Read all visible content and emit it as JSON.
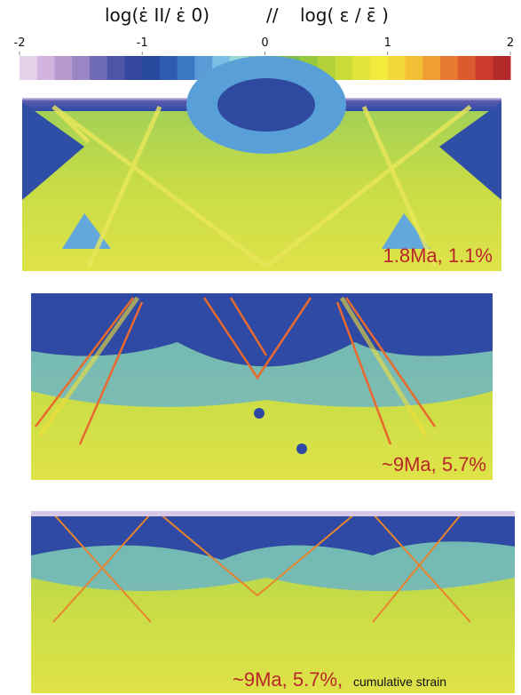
{
  "colorbar": {
    "title_left": "log(ε̇ II/ ε̇ 0)",
    "separator": "//",
    "title_right": "log( ε / ε̄ )",
    "range": [
      -2,
      2
    ],
    "ticks": [
      -2,
      -1,
      0,
      1,
      2
    ],
    "colors": [
      "#e6d2ea",
      "#d2b4de",
      "#b89ad0",
      "#9a86c4",
      "#6e6ab6",
      "#4c55a6",
      "#34479c",
      "#2a4aa0",
      "#2f5cb0",
      "#3c78c4",
      "#5a9ad6",
      "#7cc0e6",
      "#9ed8d6",
      "#8ccc9a",
      "#6cbc5a",
      "#7cc04a",
      "#98c83e",
      "#b4d03a",
      "#cadc3a",
      "#e2e63a",
      "#f2ea3c",
      "#f4d83a",
      "#f2c036",
      "#ee9e32",
      "#e67a30",
      "#dc5a2e",
      "#cc3a2c",
      "#b42a2a"
    ]
  },
  "panels": [
    {
      "label": "1.8Ma, 1.1%"
    },
    {
      "label": "~9Ma, 5.7%"
    },
    {
      "label": "~9Ma, 5.7%,",
      "note": "cumulative strain"
    }
  ]
}
